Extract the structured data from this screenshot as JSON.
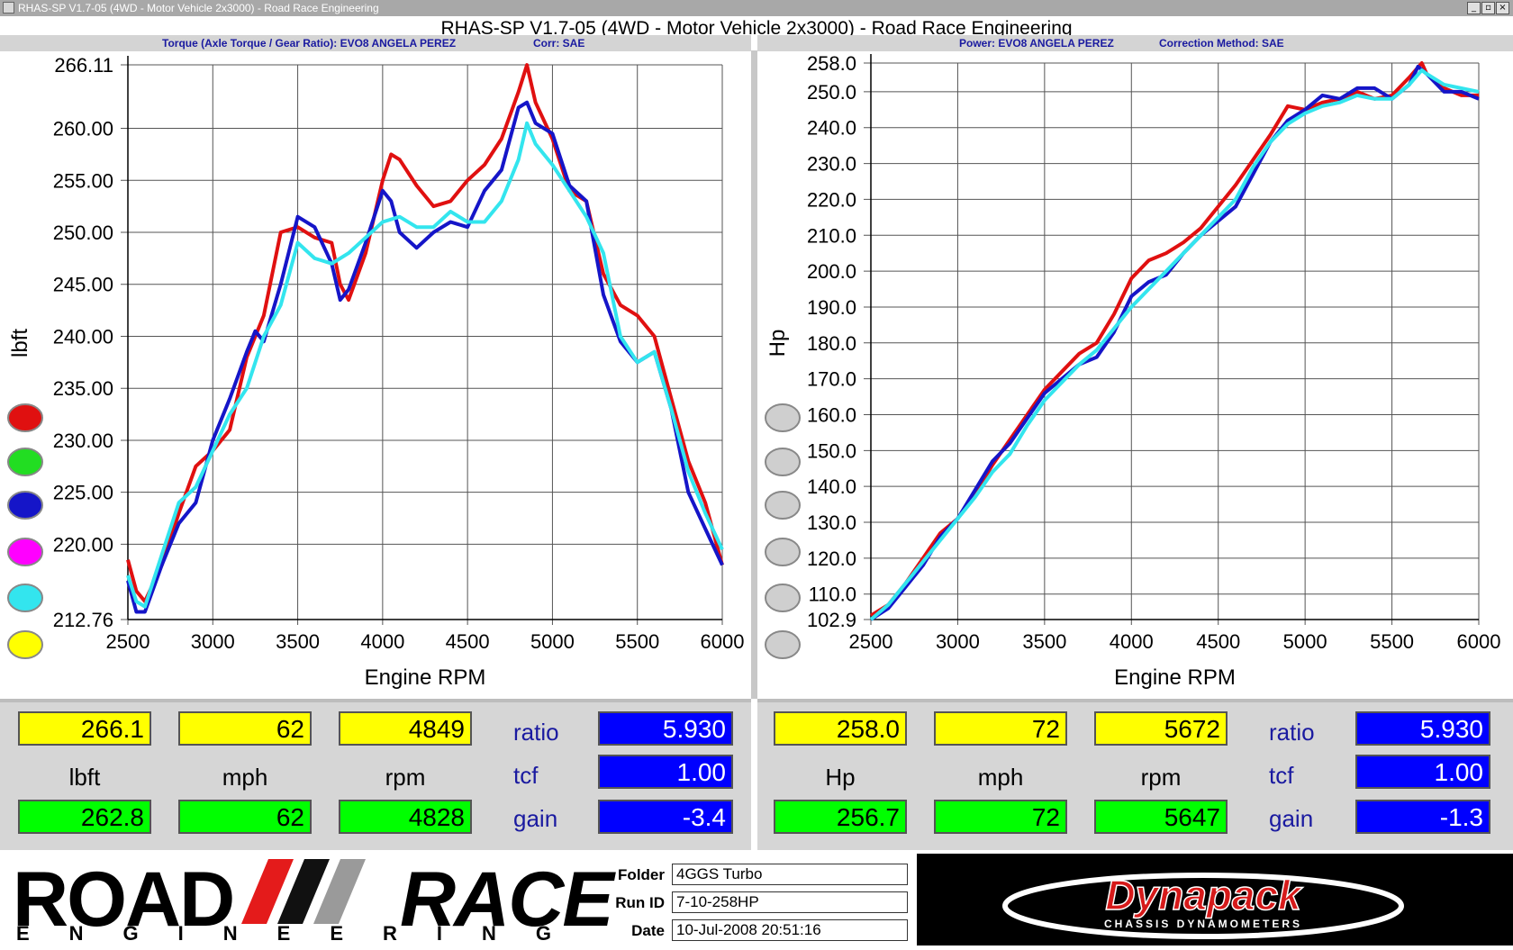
{
  "window": {
    "title": "RHAS-SP V1.7-05   (4WD - Motor Vehicle 2x3000) - Road Race Engineering",
    "main_title": "RHAS-SP V1.7-05   (4WD - Motor Vehicle 2x3000) - Road Race Engineering",
    "buttons": [
      "_",
      "▫",
      "×"
    ]
  },
  "colors": {
    "red": "#e01010",
    "green": "#22dd22",
    "blue": "#1515c8",
    "magenta": "#ff00ff",
    "cyan": "#33e5ee",
    "yellow": "#ffff00",
    "grey": "#cfcfcf"
  },
  "torque_panel": {
    "header_left": "Torque (Axle Torque / Gear Ratio): EVO8 ANGELA PEREZ",
    "header_right": "Corr: SAE"
  },
  "power_panel": {
    "header_left": "Power: EVO8 ANGELA PEREZ",
    "header_right": "Correction Method: SAE"
  },
  "chart_data": [
    {
      "type": "line",
      "xlabel": "Engine RPM",
      "ylabel": "lbft",
      "xlim": [
        2500,
        6000
      ],
      "ylim": [
        212.76,
        266.11
      ],
      "xticks": [
        "2500",
        "3000",
        "3500",
        "4000",
        "4500",
        "5000",
        "5500",
        "6000"
      ],
      "yticks": [
        "266.11",
        "260.00",
        "255.00",
        "250.00",
        "245.00",
        "240.00",
        "235.00",
        "230.00",
        "225.00",
        "220.00",
        "212.76"
      ],
      "ytick_values": [
        266.11,
        260,
        255,
        250,
        245,
        240,
        235,
        230,
        225,
        220,
        212.76
      ],
      "series": [
        {
          "color": "red",
          "x": [
            2500,
            2550,
            2600,
            2700,
            2800,
            2900,
            3000,
            3100,
            3200,
            3300,
            3400,
            3500,
            3600,
            3700,
            3750,
            3800,
            3900,
            4000,
            4050,
            4100,
            4200,
            4300,
            4400,
            4500,
            4600,
            4700,
            4800,
            4850,
            4900,
            5000,
            5100,
            5200,
            5300,
            5400,
            5500,
            5600,
            5700,
            5800,
            5900,
            6000
          ],
          "values": [
            218.5,
            215.5,
            214.5,
            218,
            223,
            227.5,
            229,
            231,
            238,
            242,
            250,
            250.5,
            249.5,
            249,
            245,
            243.5,
            248,
            255,
            257.5,
            257,
            254.5,
            252.5,
            253,
            255,
            256.5,
            259,
            263.5,
            266.1,
            262.5,
            259,
            254,
            253,
            246,
            243,
            242,
            240,
            234,
            228,
            224,
            218
          ]
        },
        {
          "color": "blue",
          "x": [
            2500,
            2550,
            2600,
            2700,
            2800,
            2900,
            3000,
            3100,
            3200,
            3250,
            3300,
            3400,
            3500,
            3600,
            3700,
            3750,
            3800,
            3900,
            4000,
            4050,
            4100,
            4200,
            4300,
            4400,
            4500,
            4600,
            4700,
            4800,
            4850,
            4900,
            5000,
            5100,
            5200,
            5300,
            5400,
            5500,
            5600,
            5700,
            5800,
            5900,
            6000
          ],
          "values": [
            216.5,
            213.5,
            213.5,
            218,
            222,
            224,
            230,
            234,
            238.5,
            240.5,
            239.5,
            245,
            251.5,
            250.5,
            247,
            243.5,
            244.5,
            249,
            254,
            253,
            250,
            248.5,
            250,
            251,
            250.5,
            254,
            256,
            262,
            262.5,
            260.5,
            259.5,
            254.5,
            253,
            244,
            239.5,
            237.5,
            238.5,
            233,
            225,
            221.5,
            218
          ]
        },
        {
          "color": "cyan",
          "x": [
            2500,
            2550,
            2600,
            2700,
            2800,
            2900,
            3000,
            3100,
            3200,
            3300,
            3400,
            3500,
            3600,
            3700,
            3800,
            3900,
            4000,
            4100,
            4200,
            4300,
            4400,
            4500,
            4600,
            4700,
            4800,
            4850,
            4900,
            5000,
            5100,
            5200,
            5300,
            5400,
            5500,
            5600,
            5700,
            5800,
            5900,
            6000
          ],
          "values": [
            217,
            214.5,
            214,
            219,
            224,
            225.5,
            229,
            232.5,
            235,
            240,
            243,
            249,
            247.5,
            247,
            248,
            249.5,
            251,
            251.5,
            250.5,
            250.5,
            252,
            251,
            251,
            253,
            257,
            260.5,
            258.5,
            256.5,
            254,
            251.5,
            248,
            240,
            237.5,
            238.5,
            233,
            227,
            223,
            219.5
          ]
        }
      ]
    },
    {
      "type": "line",
      "xlabel": "Engine RPM",
      "ylabel": "Hp",
      "xlim": [
        2500,
        6000
      ],
      "ylim": [
        102.9,
        258.0
      ],
      "xticks": [
        "2500",
        "3000",
        "3500",
        "4000",
        "4500",
        "5000",
        "5500",
        "6000"
      ],
      "yticks": [
        "258.0",
        "250.0",
        "240.0",
        "230.0",
        "220.0",
        "210.0",
        "200.0",
        "190.0",
        "180.0",
        "170.0",
        "160.0",
        "150.0",
        "140.0",
        "130.0",
        "120.0",
        "110.0",
        "102.9"
      ],
      "ytick_values": [
        258,
        250,
        240,
        230,
        220,
        210,
        200,
        190,
        180,
        170,
        160,
        150,
        140,
        130,
        120,
        110,
        102.9
      ],
      "series": [
        {
          "color": "red",
          "x": [
            2500,
            2600,
            2700,
            2800,
            2900,
            3000,
            3100,
            3200,
            3300,
            3400,
            3500,
            3600,
            3700,
            3800,
            3900,
            4000,
            4100,
            4200,
            4300,
            4400,
            4500,
            4600,
            4700,
            4800,
            4900,
            5000,
            5100,
            5200,
            5300,
            5400,
            5500,
            5600,
            5672,
            5700,
            5800,
            5900,
            6000
          ],
          "values": [
            104,
            107,
            113,
            120,
            127,
            131,
            138,
            146,
            153,
            160,
            167,
            172,
            177,
            180,
            188,
            198,
            203,
            205,
            208,
            212,
            218,
            224,
            231,
            238,
            246,
            245,
            247,
            248,
            250,
            248,
            249,
            254,
            258,
            255,
            251,
            249,
            249
          ]
        },
        {
          "color": "blue",
          "x": [
            2500,
            2600,
            2700,
            2800,
            2900,
            3000,
            3100,
            3200,
            3300,
            3400,
            3500,
            3600,
            3700,
            3800,
            3900,
            4000,
            4100,
            4200,
            4300,
            4400,
            4500,
            4600,
            4700,
            4800,
            4900,
            5000,
            5100,
            5200,
            5300,
            5400,
            5500,
            5600,
            5650,
            5700,
            5800,
            5900,
            6000
          ],
          "values": [
            102.9,
            106,
            112,
            118,
            126,
            131,
            139,
            147,
            152,
            159,
            166,
            170,
            174,
            176,
            183,
            193,
            197,
            199,
            205,
            210,
            214,
            218,
            227,
            236,
            242,
            245,
            249,
            248,
            251,
            251,
            248,
            252,
            257,
            255,
            250,
            250,
            248
          ]
        },
        {
          "color": "cyan",
          "x": [
            2500,
            2600,
            2700,
            2800,
            2900,
            3000,
            3100,
            3200,
            3300,
            3400,
            3500,
            3600,
            3700,
            3800,
            3900,
            4000,
            4100,
            4200,
            4300,
            4400,
            4500,
            4600,
            4700,
            4800,
            4900,
            5000,
            5100,
            5200,
            5300,
            5400,
            5500,
            5600,
            5672,
            5700,
            5800,
            5900,
            6000
          ],
          "values": [
            102.9,
            107,
            113,
            119,
            125,
            131,
            137,
            144,
            149,
            157,
            164,
            169,
            174,
            178,
            184,
            190,
            195,
            200,
            205,
            210,
            215,
            220,
            229,
            236,
            241,
            244,
            246,
            247,
            249,
            248,
            248,
            252,
            256,
            255,
            252,
            251,
            250
          ]
        }
      ]
    }
  ],
  "legend_left": [
    "red",
    "green",
    "blue",
    "magenta",
    "cyan",
    "yellow"
  ],
  "legend_right": [
    "grey",
    "grey",
    "grey",
    "grey",
    "grey",
    "grey"
  ],
  "readout_left": {
    "top": {
      "val1": "266.1",
      "val2": "62",
      "val3": "4849"
    },
    "labels": {
      "l1": "lbft",
      "l2": "mph",
      "l3": "rpm"
    },
    "bottom": {
      "val1": "262.8",
      "val2": "62",
      "val3": "4828"
    },
    "ratio_label": "ratio",
    "ratio_value": "5.930",
    "tcf_label": "tcf",
    "tcf_value": "1.00",
    "gain_label": "gain",
    "gain_value": "-3.4"
  },
  "readout_right": {
    "top": {
      "val1": "258.0",
      "val2": "72",
      "val3": "5672"
    },
    "labels": {
      "l1": "Hp",
      "l2": "mph",
      "l3": "rpm"
    },
    "bottom": {
      "val1": "256.7",
      "val2": "72",
      "val3": "5647"
    },
    "ratio_label": "ratio",
    "ratio_value": "5.930",
    "tcf_label": "tcf",
    "tcf_value": "1.00",
    "gain_label": "gain",
    "gain_value": "-1.3"
  },
  "footer": {
    "logo_road": "ROAD",
    "logo_race": "RACE",
    "logo_engineering": "ENGINEERING",
    "folder_label": "Folder",
    "folder_value": "4GGS Turbo",
    "runid_label": "Run ID",
    "runid_value": "7-10-258HP",
    "date_label": "Date",
    "date_value": "10-Jul-2008  20:51:16",
    "dynapack_logo": "Dynapack",
    "dynapack_sub": "CHASSIS DYNAMOMETERS"
  }
}
